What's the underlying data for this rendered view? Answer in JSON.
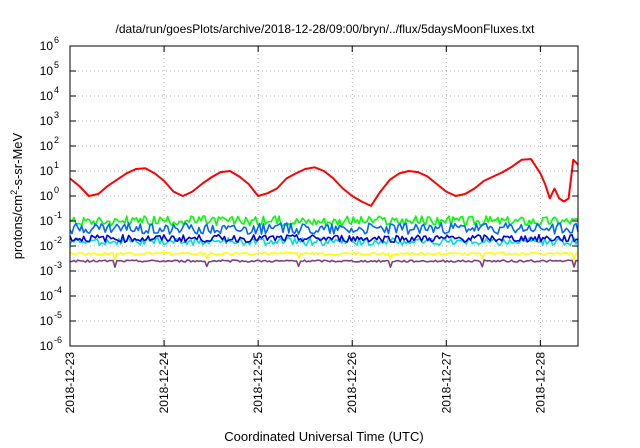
{
  "chart_data": {
    "type": "line",
    "title": "/data/run/goesPlots/archive/2018-12-28/09:00/bryn/../flux/5daysMoonFluxes.txt",
    "xlabel": "Coordinated Universal Time (UTC)",
    "ylabel": "protons/cm²-s-sr-MeV",
    "ylabel_parts": {
      "pre": "protons/cm",
      "sup": "2",
      "post": "-s-sr-MeV"
    },
    "y_scale": "log",
    "ylim": [
      1e-06,
      1000000
    ],
    "y_ticks": [
      {
        "value": 1e-06,
        "base": "10",
        "exp": "-6"
      },
      {
        "value": 1e-05,
        "base": "10",
        "exp": "-5"
      },
      {
        "value": 0.0001,
        "base": "10",
        "exp": "-4"
      },
      {
        "value": 0.001,
        "base": "10",
        "exp": "-3"
      },
      {
        "value": 0.01,
        "base": "10",
        "exp": "-2"
      },
      {
        "value": 0.1,
        "base": "10",
        "exp": "-1"
      },
      {
        "value": 1,
        "base": "10",
        "exp": "0"
      },
      {
        "value": 10,
        "base": "10",
        "exp": "1"
      },
      {
        "value": 100,
        "base": "10",
        "exp": "2"
      },
      {
        "value": 1000,
        "base": "10",
        "exp": "3"
      },
      {
        "value": 10000,
        "base": "10",
        "exp": "4"
      },
      {
        "value": 100000,
        "base": "10",
        "exp": "5"
      },
      {
        "value": 1000000,
        "base": "10",
        "exp": "6"
      }
    ],
    "x_ticks": [
      "2018-12-23",
      "2018-12-24",
      "2018-12-25",
      "2018-12-26",
      "2018-12-27",
      "2018-12-28"
    ],
    "xlim": [
      0,
      5.4
    ],
    "grid": true,
    "series": [
      {
        "color": "#ff0000",
        "x": [
          0,
          0.1,
          0.2,
          0.3,
          0.4,
          0.5,
          0.6,
          0.7,
          0.8,
          0.9,
          1.0,
          1.1,
          1.2,
          1.3,
          1.4,
          1.5,
          1.6,
          1.7,
          1.8,
          1.9,
          2.0,
          2.1,
          2.2,
          2.3,
          2.4,
          2.5,
          2.6,
          2.7,
          2.8,
          2.9,
          3.0,
          3.1,
          3.2,
          3.3,
          3.4,
          3.5,
          3.6,
          3.7,
          3.8,
          3.9,
          4.0,
          4.1,
          4.2,
          4.3,
          4.4,
          4.5,
          4.6,
          4.7,
          4.8,
          4.9,
          5.0,
          5.05,
          5.1,
          5.15,
          5.2,
          5.25,
          5.3,
          5.35,
          5.4
        ],
        "values": [
          5,
          2.5,
          1,
          1.2,
          2.5,
          4.5,
          8,
          12,
          13,
          8,
          4,
          1.5,
          1,
          1.5,
          3,
          5.5,
          9,
          10,
          6,
          3,
          1,
          1.3,
          2,
          5,
          8,
          12,
          14,
          10,
          5,
          2,
          1,
          0.6,
          0.4,
          1.5,
          4.5,
          8,
          10,
          9,
          6,
          3,
          1.5,
          1,
          1.2,
          2,
          4,
          6,
          9,
          15,
          28,
          30,
          8,
          3,
          0.8,
          2,
          0.8,
          0.6,
          0.8,
          28,
          18
        ]
      },
      {
        "color": "#00ff00",
        "x": [
          0,
          5.4
        ],
        "values": [
          0.1,
          0.1
        ],
        "band": 0.4
      },
      {
        "color": "#0066ff",
        "x": [
          0,
          5.4
        ],
        "values": [
          0.05,
          0.05
        ],
        "band": 0.45
      },
      {
        "color": "#00dddd",
        "x": [
          0,
          5.4
        ],
        "values": [
          0.015,
          0.015
        ],
        "band": 0.3
      },
      {
        "color": "#0000dd",
        "x": [
          0,
          5.4
        ],
        "values": [
          0.02,
          0.02
        ],
        "band": 0.3
      },
      {
        "color": "#ffff00",
        "x": [
          0,
          5.4
        ],
        "values": [
          0.005,
          0.005
        ],
        "band": 0.1
      },
      {
        "color": "#7f3f7f",
        "x": [
          0,
          5.4
        ],
        "values": [
          0.0025,
          0.0025
        ],
        "band": 0.08
      }
    ]
  }
}
